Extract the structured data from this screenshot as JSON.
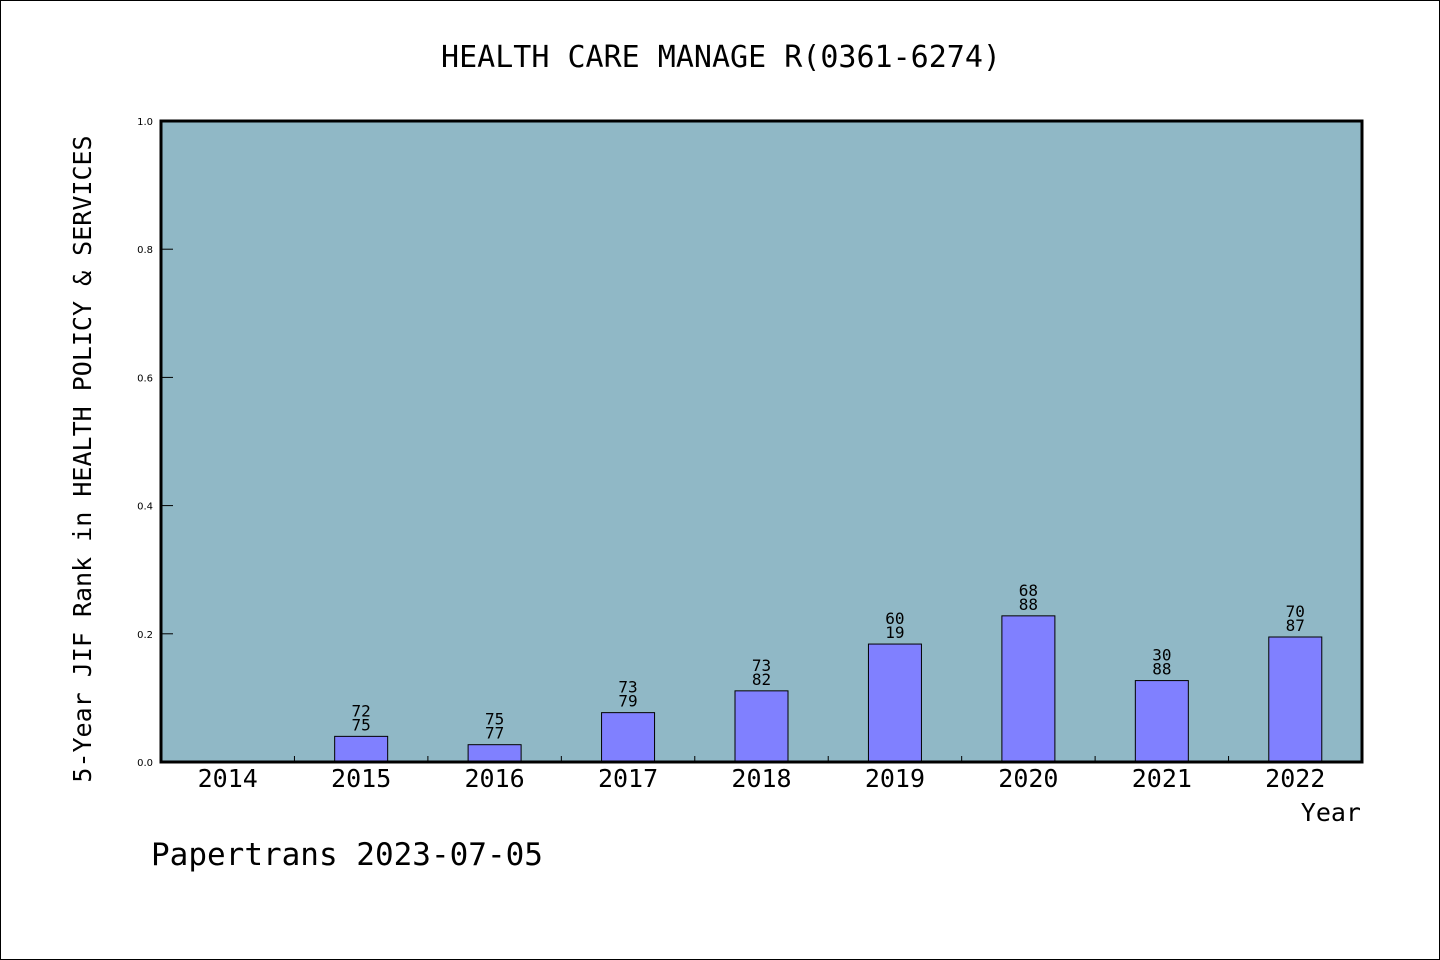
{
  "chart_data": {
    "type": "bar",
    "title": "HEALTH CARE MANAGE R(0361-6274)",
    "ylabel": "5-Year JIF Rank in HEALTH POLICY & SERVICES",
    "xlabel": "Year",
    "categories": [
      "2014",
      "2015",
      "2016",
      "2017",
      "2018",
      "2019",
      "2020",
      "2021",
      "2022"
    ],
    "values": [
      null,
      0.04,
      0.027,
      0.077,
      0.111,
      0.184,
      0.228,
      0.127,
      0.195
    ],
    "bar_labels": [
      null,
      [
        "72",
        "75"
      ],
      [
        "75",
        "77"
      ],
      [
        "73",
        "79"
      ],
      [
        "73",
        "82"
      ],
      [
        "60",
        "19"
      ],
      [
        "68",
        "88"
      ],
      [
        "30",
        "88"
      ],
      [
        "70",
        "87"
      ]
    ],
    "ylim": [
      0,
      1.0
    ],
    "yticks": [
      "0.0",
      "0.2",
      "0.4",
      "0.6",
      "0.8",
      "1.0"
    ],
    "grid": false,
    "colors": {
      "plot_background": "#90b8c6",
      "bar_fill": "#8080ff",
      "bar_stroke": "#000000"
    }
  },
  "footer": "Papertrans 2023-07-05"
}
